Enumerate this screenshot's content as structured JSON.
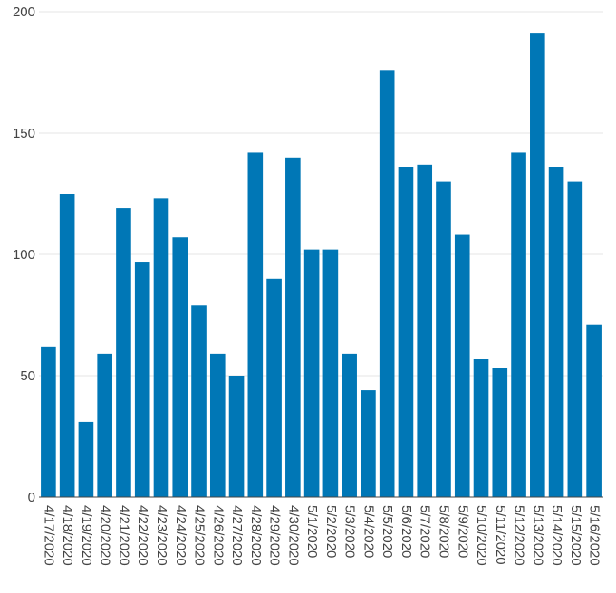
{
  "chart_data": {
    "type": "bar",
    "title": "",
    "xlabel": "",
    "ylabel": "",
    "ylim": [
      0,
      200
    ],
    "yticks": [
      0,
      50,
      100,
      150,
      200
    ],
    "grid": true,
    "bar_color": "#0077b6",
    "categories": [
      "4/17/2020",
      "4/18/2020",
      "4/19/2020",
      "4/20/2020",
      "4/21/2020",
      "4/22/2020",
      "4/23/2020",
      "4/24/2020",
      "4/25/2020",
      "4/26/2020",
      "4/27/2020",
      "4/28/2020",
      "4/29/2020",
      "4/30/2020",
      "5/1/2020",
      "5/2/2020",
      "5/3/2020",
      "5/4/2020",
      "5/5/2020",
      "5/6/2020",
      "5/7/2020",
      "5/8/2020",
      "5/9/2020",
      "5/10/2020",
      "5/11/2020",
      "5/12/2020",
      "5/13/2020",
      "5/14/2020",
      "5/15/2020",
      "5/16/2020"
    ],
    "values": [
      62,
      125,
      31,
      59,
      119,
      97,
      123,
      107,
      79,
      59,
      50,
      142,
      90,
      140,
      102,
      102,
      59,
      44,
      176,
      136,
      137,
      130,
      108,
      57,
      53,
      142,
      191,
      136,
      130,
      71
    ]
  }
}
